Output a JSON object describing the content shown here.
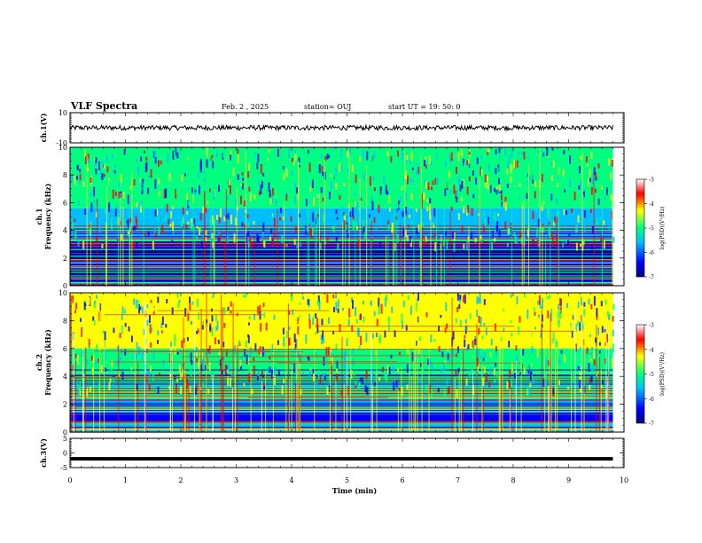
{
  "header": {
    "title": "VLF Spectra",
    "date": "Feb. 2 , 2025",
    "station": "station= OUJ",
    "start": "start  UT  =   19: 50: 0"
  },
  "colors": {
    "spectrum": [
      "#000080",
      "#0000ff",
      "#00bfff",
      "#00ff80",
      "#ffff00",
      "#ff0000",
      "#ffffff"
    ],
    "trace": "#000000"
  },
  "chart_data": [
    {
      "type": "line",
      "panel": "ch1-waveform",
      "ylabel": "ch.1(V)",
      "ylim": [
        -10,
        10
      ],
      "yticks": [
        "10",
        "-10"
      ],
      "x": [
        0,
        9.8
      ],
      "series": [
        {
          "values": [
            0,
            0
          ]
        }
      ]
    },
    {
      "type": "heatmap",
      "panel": "ch1-spectrogram",
      "ylabel": "ch.1\nFrequency (kHz)",
      "ylim": [
        0,
        10
      ],
      "yticks": [
        "0",
        "2",
        "4",
        "6",
        "8",
        "10"
      ],
      "x_range": [
        0,
        9.8
      ],
      "band_levels": [
        {
          "f": [
            0.0,
            0.4
          ],
          "level": -6.6
        },
        {
          "f": [
            0.4,
            1.2
          ],
          "level": -6.9
        },
        {
          "f": [
            1.2,
            1.8
          ],
          "level": -6.5
        },
        {
          "f": [
            1.8,
            2.6
          ],
          "level": -6.8
        },
        {
          "f": [
            2.6,
            3.2
          ],
          "level": -6.2
        },
        {
          "f": [
            3.2,
            4.0
          ],
          "level": -5.6
        },
        {
          "f": [
            4.0,
            5.6
          ],
          "level": -5.4
        },
        {
          "f": [
            5.6,
            7.2
          ],
          "level": -5.0
        },
        {
          "f": [
            7.2,
            10.0
          ],
          "level": -4.8
        }
      ],
      "colorbar": {
        "label": "log(PSD)(V²/Hz)",
        "range": [
          -7,
          -3
        ],
        "ticks": [
          "-3",
          "-4",
          "-5",
          "-6",
          "-7"
        ]
      }
    },
    {
      "type": "heatmap",
      "panel": "ch2-spectrogram",
      "ylabel": "ch.2\nFrequency (kHz)",
      "ylim": [
        0,
        10
      ],
      "yticks": [
        "0",
        "2",
        "4",
        "6",
        "8",
        "10"
      ],
      "x_range": [
        0,
        9.8
      ],
      "band_levels": [
        {
          "f": [
            0.0,
            0.6
          ],
          "level": -5.6
        },
        {
          "f": [
            0.6,
            1.4
          ],
          "level": -6.3
        },
        {
          "f": [
            1.4,
            2.4
          ],
          "level": -6.0
        },
        {
          "f": [
            2.4,
            3.2
          ],
          "level": -5.3
        },
        {
          "f": [
            3.2,
            4.0
          ],
          "level": -5.0
        },
        {
          "f": [
            4.0,
            6.0
          ],
          "level": -4.9
        },
        {
          "f": [
            6.0,
            10.0
          ],
          "level": -4.6
        }
      ],
      "colorbar": {
        "label": "log(PSD)(V²/Hz)",
        "range": [
          -7,
          -3
        ],
        "ticks": [
          "-3",
          "-4",
          "-5",
          "-6",
          "-7"
        ]
      }
    },
    {
      "type": "line",
      "panel": "ch3-waveform",
      "ylabel": "ch.3(V)",
      "ylim": [
        -5,
        5
      ],
      "yticks": [
        "5",
        "0",
        "-5"
      ],
      "x": [
        0,
        9.8
      ],
      "series": [
        {
          "values": [
            -2,
            -2
          ]
        }
      ]
    }
  ],
  "xaxis": {
    "label": "Time  (min)",
    "range": [
      0,
      10
    ],
    "ticks": [
      "0",
      "1",
      "2",
      "3",
      "4",
      "5",
      "6",
      "7",
      "8",
      "9",
      "10"
    ]
  }
}
